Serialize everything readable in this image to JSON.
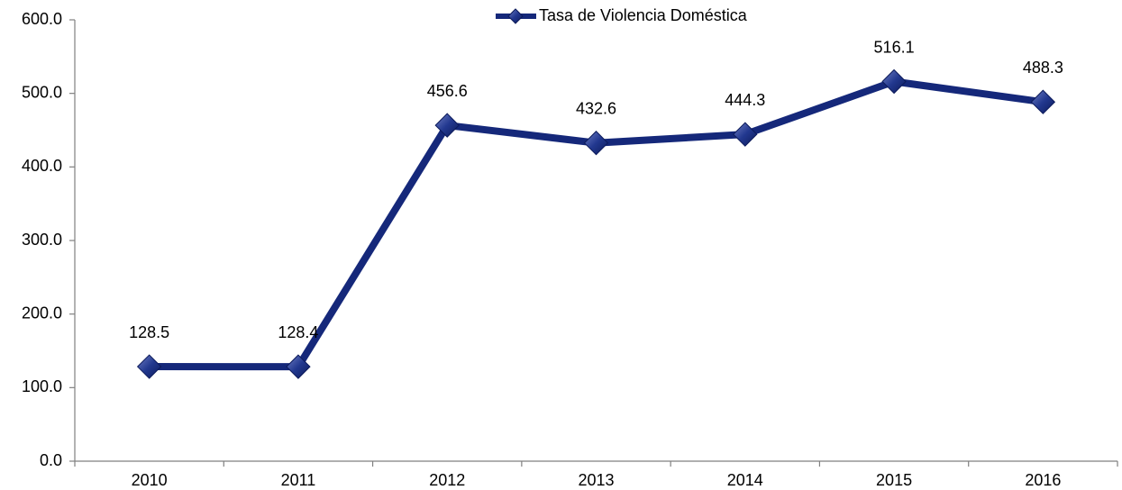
{
  "chart_data": {
    "type": "line",
    "categories": [
      "2010",
      "2011",
      "2012",
      "2013",
      "2014",
      "2015",
      "2016"
    ],
    "series": [
      {
        "name": "Tasa de Violencia Doméstica",
        "color": "#15287a",
        "values": [
          128.5,
          128.4,
          456.6,
          432.6,
          444.3,
          516.1,
          488.3
        ]
      }
    ],
    "ylim": [
      0,
      600
    ],
    "yticks": [
      {
        "value": 0,
        "label": "0.0"
      },
      {
        "value": 100,
        "label": "100.0"
      },
      {
        "value": 200,
        "label": "200.0"
      },
      {
        "value": 300,
        "label": "300.0"
      },
      {
        "value": 400,
        "label": "400.0"
      },
      {
        "value": 500,
        "label": "500.0"
      },
      {
        "value": 600,
        "label": "600.0"
      }
    ],
    "legend": "top",
    "grid": false,
    "data_labels": true
  }
}
